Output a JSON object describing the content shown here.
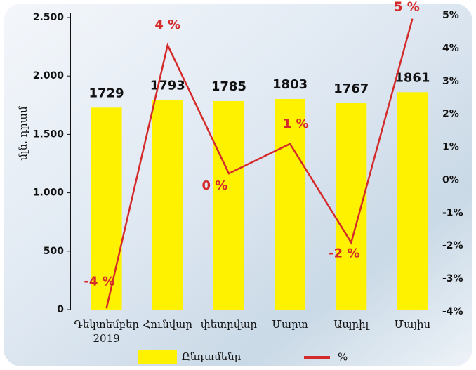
{
  "chart_data": {
    "type": "bar",
    "y_label": "մլն. դրամ",
    "categories": [
      "Դեկտեմբեր 2019",
      "Հունվար",
      "փետրվար",
      "Մարտ",
      "Ապրիլ",
      "Մայիս"
    ],
    "series": [
      {
        "name": "Ընդամենը",
        "type": "bar",
        "color": "#fff200",
        "values": [
          1729,
          1793,
          1785,
          1803,
          1767,
          1861
        ]
      },
      {
        "name": "%",
        "type": "line",
        "axis": "y2",
        "color": "#d42a2a",
        "values": [
          -3.9,
          4.1,
          0.2,
          1.1,
          -1.9,
          4.9
        ],
        "value_labels": [
          "-4 %",
          "4 %",
          "0 %",
          "1 %",
          "-2 %",
          "5 %"
        ]
      }
    ],
    "ylim": [
      0,
      2500
    ],
    "yticks": [
      0,
      500,
      {
        "value": 1000,
        "label": "1.000"
      },
      {
        "value": 1500,
        "label": "1.500"
      },
      {
        "value": 2000,
        "label": "2.000"
      },
      {
        "value": 2500,
        "label": "2.500"
      }
    ],
    "y2lim": [
      -4,
      5
    ],
    "y2ticks": [
      {
        "value": -4,
        "label": "-4%"
      },
      {
        "value": -3,
        "label": "-3%"
      },
      {
        "value": -2,
        "label": "-2%"
      },
      {
        "value": -1,
        "label": "-1%"
      },
      {
        "value": 0,
        "label": "0%"
      },
      {
        "value": 1,
        "label": "1%"
      },
      {
        "value": 2,
        "label": "2%"
      },
      {
        "value": 3,
        "label": "3%"
      },
      {
        "value": 4,
        "label": "4%"
      },
      {
        "value": 5,
        "label": "5%"
      }
    ]
  }
}
